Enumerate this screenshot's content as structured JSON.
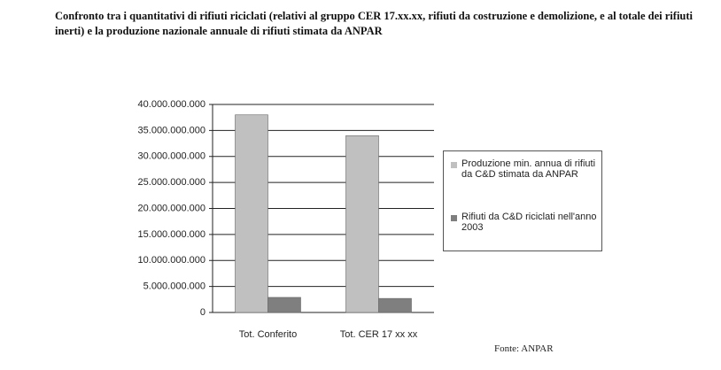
{
  "chart_data": {
    "type": "bar",
    "title": "Confronto tra i quantitativi di rifiuti riciclati (relativi al gruppo CER 17.xx.xx, rifiuti da costruzione e demolizione, e al totale dei rifiuti inerti) e la produzione nazionale annuale di rifiuti stimata da ANPAR",
    "categories": [
      "Tot. Conferito",
      "Tot. CER 17 xx xx"
    ],
    "series": [
      {
        "name": "Produzione min. annua di rifiuti da C&D stimata da ANPAR",
        "color": "#c0c0c0",
        "values": [
          38000000000,
          34000000000
        ]
      },
      {
        "name": "Rifiuti da C&D riciclati nell'anno 2003",
        "color": "#7f7f7f",
        "values": [
          2900000000,
          2700000000
        ]
      }
    ],
    "ylim": [
      0,
      40000000000
    ],
    "yticks": [
      0,
      {
        "value": 5000000000,
        "label": "5.000.000.000"
      },
      {
        "value": 10000000000,
        "label": "10.000.000.000"
      },
      {
        "value": 15000000000,
        "label": "15.000.000.000"
      },
      {
        "value": 20000000000,
        "label": "20.000.000.000"
      },
      {
        "value": 25000000000,
        "label": "25.000.000.000"
      },
      {
        "value": 30000000000,
        "label": "30.000.000.000"
      },
      {
        "value": 35000000000,
        "label": "35.000.000.000"
      },
      {
        "value": 40000000000,
        "label": "40.000.000.000"
      }
    ],
    "grid": true,
    "legend": "right",
    "source": "Fonte: ANPAR"
  }
}
